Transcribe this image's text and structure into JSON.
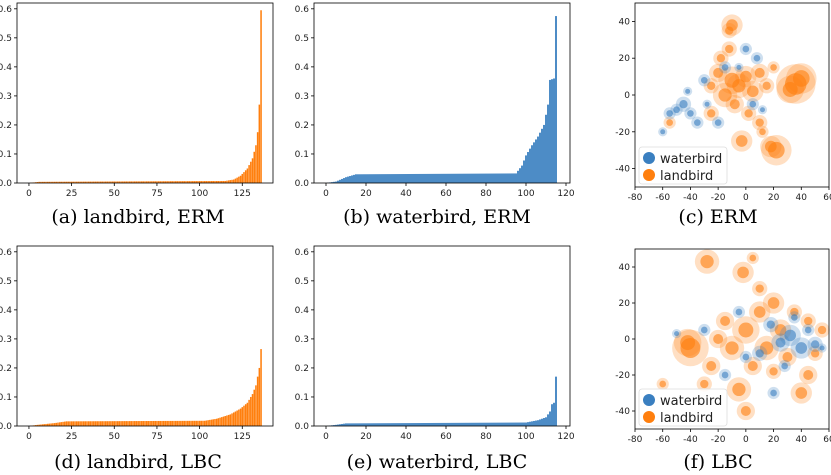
{
  "colors": {
    "landbird": "#ff7f0e",
    "waterbird": "#3a7fc0"
  },
  "chart_data": [
    {
      "id": "a",
      "type": "bar",
      "caption": "(a) landbird, ERM",
      "series_color": "landbird",
      "xlim": [
        -7,
        143
      ],
      "ylim": [
        0,
        0.62
      ],
      "xticks": [
        0,
        25,
        50,
        75,
        100,
        125
      ],
      "yticks": [
        0.0,
        0.1,
        0.2,
        0.3,
        0.4,
        0.5,
        0.6
      ],
      "n": 137,
      "profile": [
        [
          0,
          0
        ],
        [
          6,
          0.004
        ],
        [
          115,
          0.007
        ],
        [
          120,
          0.012
        ],
        [
          124,
          0.025
        ],
        [
          128,
          0.05
        ],
        [
          131,
          0.085
        ],
        [
          133,
          0.13
        ],
        [
          134,
          0.175
        ],
        [
          135,
          0.27
        ],
        [
          136,
          0.595
        ]
      ]
    },
    {
      "id": "b",
      "type": "bar",
      "caption": "(b) waterbird, ERM",
      "series_color": "waterbird",
      "xlim": [
        -6,
        122
      ],
      "ylim": [
        0,
        0.62
      ],
      "xticks": [
        0,
        20,
        40,
        60,
        80,
        100,
        120
      ],
      "yticks": [
        0.0,
        0.1,
        0.2,
        0.3,
        0.4,
        0.5,
        0.6
      ],
      "n": 116,
      "profile": [
        [
          0,
          0
        ],
        [
          5,
          0.005
        ],
        [
          10,
          0.02
        ],
        [
          15,
          0.03
        ],
        [
          95,
          0.033
        ],
        [
          98,
          0.06
        ],
        [
          100,
          0.095
        ],
        [
          103,
          0.13
        ],
        [
          106,
          0.16
        ],
        [
          109,
          0.2
        ],
        [
          111,
          0.27
        ],
        [
          112,
          0.355
        ],
        [
          114,
          0.36
        ],
        [
          115,
          0.575
        ]
      ]
    },
    {
      "id": "d",
      "type": "bar",
      "caption": "(d) landbird, LBC",
      "series_color": "landbird",
      "xlim": [
        -7,
        143
      ],
      "ylim": [
        0,
        0.62
      ],
      "xticks": [
        0,
        25,
        50,
        75,
        100,
        125
      ],
      "yticks": [
        0.0,
        0.1,
        0.2,
        0.3,
        0.4,
        0.5,
        0.6
      ],
      "n": 137,
      "profile": [
        [
          0,
          0
        ],
        [
          5,
          0.004
        ],
        [
          15,
          0.01
        ],
        [
          22,
          0.016
        ],
        [
          103,
          0.018
        ],
        [
          110,
          0.025
        ],
        [
          118,
          0.04
        ],
        [
          124,
          0.06
        ],
        [
          128,
          0.08
        ],
        [
          131,
          0.11
        ],
        [
          133,
          0.14
        ],
        [
          134,
          0.17
        ],
        [
          135,
          0.2
        ],
        [
          136,
          0.265
        ]
      ]
    },
    {
      "id": "e",
      "type": "bar",
      "caption": "(e) waterbird, LBC",
      "series_color": "waterbird",
      "xlim": [
        -6,
        122
      ],
      "ylim": [
        0,
        0.62
      ],
      "xticks": [
        0,
        20,
        40,
        60,
        80,
        100,
        120
      ],
      "yticks": [
        0.0,
        0.1,
        0.2,
        0.3,
        0.4,
        0.5,
        0.6
      ],
      "n": 116,
      "profile": [
        [
          0,
          0
        ],
        [
          5,
          0.004
        ],
        [
          10,
          0.009
        ],
        [
          100,
          0.012
        ],
        [
          106,
          0.02
        ],
        [
          110,
          0.03
        ],
        [
          112,
          0.05
        ],
        [
          113,
          0.075
        ],
        [
          114,
          0.08
        ],
        [
          115,
          0.17
        ]
      ]
    },
    {
      "id": "c",
      "type": "scatter",
      "caption": "(c) ERM",
      "xlim": [
        -80,
        60
      ],
      "ylim": [
        -50,
        50
      ],
      "xticks": [
        -80,
        -60,
        -40,
        -20,
        0,
        20,
        40,
        60
      ],
      "yticks": [
        -40,
        -20,
        0,
        20,
        40
      ],
      "legend": {
        "position": "lower-left",
        "entries": [
          "waterbird",
          "landbird"
        ]
      },
      "points": [
        {
          "x": -10,
          "y": 8,
          "s": 9,
          "g": "landbird"
        },
        {
          "x": -5,
          "y": 5,
          "s": 8,
          "g": "landbird"
        },
        {
          "x": 0,
          "y": 10,
          "s": 7,
          "g": "landbird"
        },
        {
          "x": -15,
          "y": 0,
          "s": 8,
          "g": "landbird"
        },
        {
          "x": 5,
          "y": 2,
          "s": 7,
          "g": "landbird"
        },
        {
          "x": -20,
          "y": 12,
          "s": 6,
          "g": "landbird"
        },
        {
          "x": 10,
          "y": 12,
          "s": 6,
          "g": "landbird"
        },
        {
          "x": -25,
          "y": 5,
          "s": 5,
          "g": "landbird"
        },
        {
          "x": 36,
          "y": 6,
          "s": 13,
          "g": "landbird"
        },
        {
          "x": 40,
          "y": 9,
          "s": 10,
          "g": "landbird"
        },
        {
          "x": 32,
          "y": 3,
          "s": 9,
          "g": "landbird"
        },
        {
          "x": -10,
          "y": 38,
          "s": 7,
          "g": "landbird"
        },
        {
          "x": -12,
          "y": 35,
          "s": 5,
          "g": "landbird"
        },
        {
          "x": 22,
          "y": -30,
          "s": 10,
          "g": "landbird"
        },
        {
          "x": 18,
          "y": -28,
          "s": 7,
          "g": "landbird"
        },
        {
          "x": -3,
          "y": -25,
          "s": 7,
          "g": "landbird"
        },
        {
          "x": 10,
          "y": -15,
          "s": 5,
          "g": "landbird"
        },
        {
          "x": -25,
          "y": -10,
          "s": 5,
          "g": "landbird"
        },
        {
          "x": -55,
          "y": -15,
          "s": 4,
          "g": "landbird"
        },
        {
          "x": 12,
          "y": -20,
          "s": 4,
          "g": "landbird"
        },
        {
          "x": -8,
          "y": -5,
          "s": 6,
          "g": "landbird"
        },
        {
          "x": 2,
          "y": -10,
          "s": 5,
          "g": "landbird"
        },
        {
          "x": -18,
          "y": 20,
          "s": 5,
          "g": "landbird"
        },
        {
          "x": 15,
          "y": 5,
          "s": 5,
          "g": "landbird"
        },
        {
          "x": -12,
          "y": 25,
          "s": 5,
          "g": "landbird"
        },
        {
          "x": 20,
          "y": 15,
          "s": 4,
          "g": "landbird"
        },
        {
          "x": -45,
          "y": -5,
          "s": 5,
          "g": "waterbird"
        },
        {
          "x": -40,
          "y": -10,
          "s": 4,
          "g": "waterbird"
        },
        {
          "x": -30,
          "y": 8,
          "s": 4,
          "g": "waterbird"
        },
        {
          "x": -20,
          "y": -15,
          "s": 4,
          "g": "waterbird"
        },
        {
          "x": -50,
          "y": -8,
          "s": 4,
          "g": "waterbird"
        },
        {
          "x": 8,
          "y": 20,
          "s": 4,
          "g": "waterbird"
        },
        {
          "x": -15,
          "y": 15,
          "s": 4,
          "g": "waterbird"
        },
        {
          "x": 5,
          "y": -5,
          "s": 4,
          "g": "waterbird"
        },
        {
          "x": -35,
          "y": -15,
          "s": 4,
          "g": "waterbird"
        },
        {
          "x": 0,
          "y": 25,
          "s": 4,
          "g": "waterbird"
        },
        {
          "x": -28,
          "y": -5,
          "s": 3,
          "g": "waterbird"
        },
        {
          "x": -55,
          "y": -10,
          "s": 4,
          "g": "waterbird"
        },
        {
          "x": -5,
          "y": 15,
          "s": 3,
          "g": "waterbird"
        },
        {
          "x": 12,
          "y": -8,
          "s": 3,
          "g": "waterbird"
        },
        {
          "x": -60,
          "y": -20,
          "s": 3,
          "g": "waterbird"
        },
        {
          "x": -42,
          "y": 2,
          "s": 3,
          "g": "waterbird"
        }
      ]
    },
    {
      "id": "f",
      "type": "scatter",
      "caption": "(f) LBC",
      "xlim": [
        -80,
        60
      ],
      "ylim": [
        -50,
        50
      ],
      "xticks": [
        -80,
        -60,
        -40,
        -20,
        0,
        20,
        40,
        60
      ],
      "yticks": [
        -40,
        -20,
        0,
        20,
        40
      ],
      "legend": {
        "position": "lower-left",
        "entries": [
          "waterbird",
          "landbird"
        ]
      },
      "points": [
        {
          "x": -40,
          "y": -5,
          "s": 12,
          "g": "landbird"
        },
        {
          "x": -42,
          "y": -2,
          "s": 9,
          "g": "landbird"
        },
        {
          "x": -28,
          "y": 43,
          "s": 8,
          "g": "landbird"
        },
        {
          "x": -2,
          "y": 37,
          "s": 7,
          "g": "landbird"
        },
        {
          "x": 20,
          "y": 20,
          "s": 7,
          "g": "landbird"
        },
        {
          "x": 10,
          "y": 15,
          "s": 7,
          "g": "landbird"
        },
        {
          "x": 0,
          "y": 5,
          "s": 9,
          "g": "landbird"
        },
        {
          "x": -10,
          "y": -5,
          "s": 8,
          "g": "landbird"
        },
        {
          "x": 15,
          "y": -5,
          "s": 8,
          "g": "landbird"
        },
        {
          "x": 25,
          "y": 5,
          "s": 7,
          "g": "landbird"
        },
        {
          "x": -5,
          "y": -28,
          "s": 8,
          "g": "landbird"
        },
        {
          "x": 0,
          "y": -40,
          "s": 6,
          "g": "landbird"
        },
        {
          "x": 40,
          "y": -30,
          "s": 7,
          "g": "landbird"
        },
        {
          "x": 45,
          "y": -20,
          "s": 6,
          "g": "landbird"
        },
        {
          "x": 55,
          "y": 5,
          "s": 5,
          "g": "landbird"
        },
        {
          "x": -25,
          "y": -15,
          "s": 6,
          "g": "landbird"
        },
        {
          "x": -15,
          "y": 10,
          "s": 6,
          "g": "landbird"
        },
        {
          "x": 30,
          "y": -10,
          "s": 6,
          "g": "landbird"
        },
        {
          "x": 5,
          "y": -15,
          "s": 6,
          "g": "landbird"
        },
        {
          "x": -30,
          "y": -25,
          "s": 5,
          "g": "landbird"
        },
        {
          "x": 10,
          "y": 28,
          "s": 5,
          "g": "landbird"
        },
        {
          "x": 20,
          "y": -18,
          "s": 5,
          "g": "landbird"
        },
        {
          "x": -20,
          "y": 0,
          "s": 6,
          "g": "landbird"
        },
        {
          "x": 35,
          "y": 15,
          "s": 5,
          "g": "landbird"
        },
        {
          "x": 45,
          "y": 10,
          "s": 5,
          "g": "landbird"
        },
        {
          "x": -60,
          "y": -25,
          "s": 4,
          "g": "landbird"
        },
        {
          "x": 50,
          "y": -8,
          "s": 5,
          "g": "landbird"
        },
        {
          "x": 5,
          "y": 45,
          "s": 4,
          "g": "landbird"
        },
        {
          "x": 32,
          "y": 2,
          "s": 7,
          "g": "waterbird"
        },
        {
          "x": 40,
          "y": -5,
          "s": 7,
          "g": "waterbird"
        },
        {
          "x": 25,
          "y": -2,
          "s": 6,
          "g": "waterbird"
        },
        {
          "x": 50,
          "y": -3,
          "s": 5,
          "g": "waterbird"
        },
        {
          "x": 18,
          "y": 8,
          "s": 5,
          "g": "waterbird"
        },
        {
          "x": 10,
          "y": -8,
          "s": 5,
          "g": "waterbird"
        },
        {
          "x": -30,
          "y": 5,
          "s": 4,
          "g": "waterbird"
        },
        {
          "x": 0,
          "y": -10,
          "s": 4,
          "g": "waterbird"
        },
        {
          "x": -5,
          "y": 15,
          "s": 4,
          "g": "waterbird"
        },
        {
          "x": 35,
          "y": 12,
          "s": 4,
          "g": "waterbird"
        },
        {
          "x": 20,
          "y": -30,
          "s": 4,
          "g": "waterbird"
        },
        {
          "x": -15,
          "y": -20,
          "s": 4,
          "g": "waterbird"
        },
        {
          "x": -50,
          "y": 3,
          "s": 3,
          "g": "waterbird"
        },
        {
          "x": 45,
          "y": 5,
          "s": 4,
          "g": "waterbird"
        },
        {
          "x": 28,
          "y": -15,
          "s": 4,
          "g": "waterbird"
        },
        {
          "x": 55,
          "y": -5,
          "s": 3,
          "g": "waterbird"
        }
      ]
    }
  ]
}
